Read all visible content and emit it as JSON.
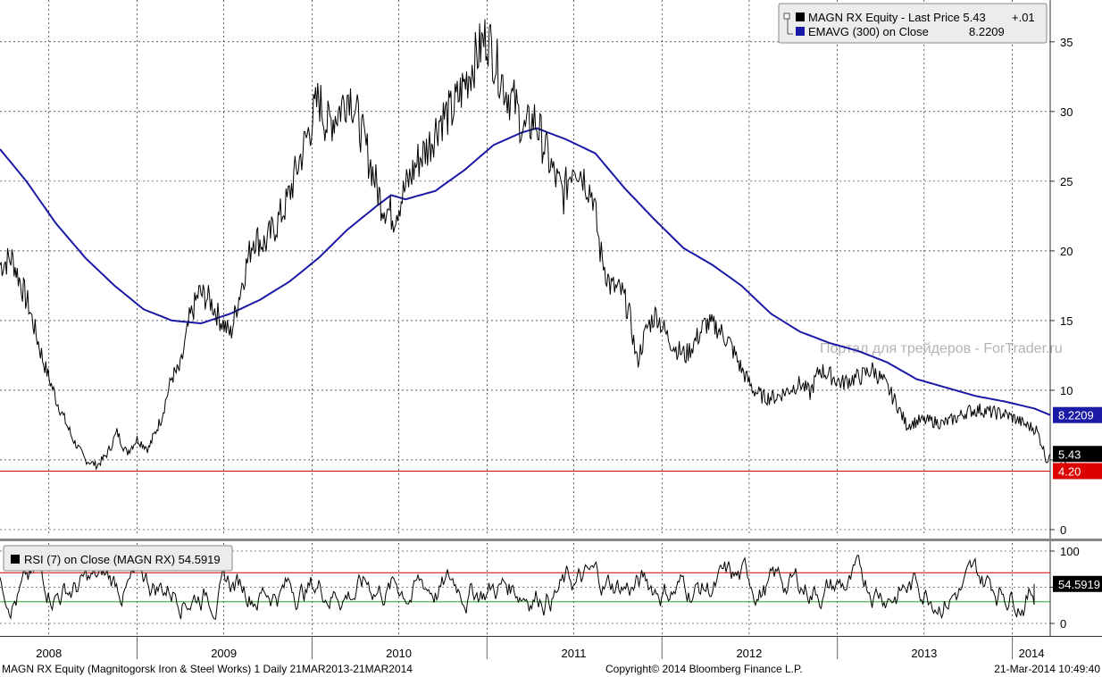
{
  "chart_data": {
    "type": "line",
    "main_panel": {
      "ylim": [
        0,
        38
      ],
      "y_ticks": [
        0,
        5,
        10,
        15,
        20,
        25,
        30,
        35
      ],
      "grid": true,
      "series": [
        {
          "name": "MAGN RX Equity - Last Price",
          "color": "#000000",
          "points": [
            [
              "2008-03-21",
              19.0
            ],
            [
              "2008-04-15",
              19.5
            ],
            [
              "2008-05-20",
              16.0
            ],
            [
              "2008-06-20",
              12.0
            ],
            [
              "2008-07-20",
              9.0
            ],
            [
              "2008-08-20",
              6.5
            ],
            [
              "2008-09-15",
              5.0
            ],
            [
              "2008-10-10",
              4.6
            ],
            [
              "2008-11-01",
              5.5
            ],
            [
              "2008-11-20",
              7.0
            ],
            [
              "2008-12-10",
              5.5
            ],
            [
              "2009-01-01",
              6.5
            ],
            [
              "2009-01-25",
              5.8
            ],
            [
              "2009-02-20",
              8.0
            ],
            [
              "2009-03-15",
              11.0
            ],
            [
              "2009-04-01",
              11.5
            ],
            [
              "2009-04-20",
              15.0
            ],
            [
              "2009-05-10",
              17.0
            ],
            [
              "2009-06-01",
              16.5
            ],
            [
              "2009-06-25",
              15.0
            ],
            [
              "2009-07-15",
              14.0
            ],
            [
              "2009-08-10",
              18.0
            ],
            [
              "2009-09-01",
              21.0
            ],
            [
              "2009-09-25",
              20.5
            ],
            [
              "2009-10-20",
              22.0
            ],
            [
              "2009-11-10",
              23.5
            ],
            [
              "2009-12-01",
              26.0
            ],
            [
              "2009-12-20",
              28.0
            ],
            [
              "2010-01-15",
              31.0
            ],
            [
              "2010-02-01",
              29.0
            ],
            [
              "2010-02-25",
              30.0
            ],
            [
              "2010-03-20",
              31.5
            ],
            [
              "2010-04-10",
              29.0
            ],
            [
              "2010-05-01",
              26.5
            ],
            [
              "2010-05-25",
              23.5
            ],
            [
              "2010-06-20",
              22.5
            ],
            [
              "2010-07-15",
              24.5
            ],
            [
              "2010-08-10",
              26.5
            ],
            [
              "2010-09-01",
              27.5
            ],
            [
              "2010-09-25",
              29.5
            ],
            [
              "2010-10-20",
              30.0
            ],
            [
              "2010-11-15",
              32.0
            ],
            [
              "2010-12-10",
              34.0
            ],
            [
              "2011-01-01",
              35.5
            ],
            [
              "2011-01-20",
              33.5
            ],
            [
              "2011-02-10",
              31.5
            ],
            [
              "2011-03-01",
              30.5
            ],
            [
              "2011-03-20",
              28.5
            ],
            [
              "2011-04-10",
              29.5
            ],
            [
              "2011-05-01",
              27.5
            ],
            [
              "2011-05-20",
              25.5
            ],
            [
              "2011-06-10",
              24.0
            ],
            [
              "2011-07-01",
              26.5
            ],
            [
              "2011-07-20",
              25.5
            ],
            [
              "2011-08-10",
              24.0
            ],
            [
              "2011-08-25",
              20.0
            ],
            [
              "2011-09-15",
              17.5
            ],
            [
              "2011-10-10",
              17.0
            ],
            [
              "2011-10-25",
              15.5
            ],
            [
              "2011-11-10",
              12.0
            ],
            [
              "2011-12-01",
              14.5
            ],
            [
              "2011-12-20",
              15.5
            ],
            [
              "2012-01-10",
              14.0
            ],
            [
              "2012-01-30",
              13.0
            ],
            [
              "2012-02-20",
              12.5
            ],
            [
              "2012-03-10",
              13.5
            ],
            [
              "2012-04-01",
              14.8
            ],
            [
              "2012-04-25",
              14.5
            ],
            [
              "2012-05-20",
              13.5
            ],
            [
              "2012-06-15",
              11.5
            ],
            [
              "2012-07-10",
              10.0
            ],
            [
              "2012-08-01",
              9.5
            ],
            [
              "2012-08-25",
              9.5
            ],
            [
              "2012-09-20",
              10.0
            ],
            [
              "2012-10-15",
              10.5
            ],
            [
              "2012-11-05",
              9.8
            ],
            [
              "2012-11-25",
              11.5
            ],
            [
              "2012-12-20",
              11.0
            ],
            [
              "2013-01-10",
              10.5
            ],
            [
              "2013-01-30",
              10.8
            ],
            [
              "2013-02-20",
              11.0
            ],
            [
              "2013-03-15",
              11.5
            ],
            [
              "2013-04-10",
              10.5
            ],
            [
              "2013-05-05",
              9.0
            ],
            [
              "2013-05-25",
              7.5
            ],
            [
              "2013-06-20",
              7.8
            ],
            [
              "2013-07-15",
              7.8
            ],
            [
              "2013-08-10",
              7.6
            ],
            [
              "2013-09-05",
              8.0
            ],
            [
              "2013-10-01",
              8.5
            ],
            [
              "2013-10-25",
              8.6
            ],
            [
              "2013-11-20",
              8.4
            ],
            [
              "2013-12-15",
              8.3
            ],
            [
              "2014-01-10",
              7.9
            ],
            [
              "2014-01-30",
              7.5
            ],
            [
              "2014-02-20",
              7.2
            ],
            [
              "2014-03-05",
              6.0
            ],
            [
              "2014-03-14",
              4.9
            ],
            [
              "2014-03-21",
              5.43
            ]
          ]
        },
        {
          "name": "EMAVG (300) on Close",
          "color": "#1a1aa6",
          "points": [
            [
              "2008-03-21",
              27.3
            ],
            [
              "2008-05-15",
              25.0
            ],
            [
              "2008-07-15",
              22.0
            ],
            [
              "2008-09-15",
              19.5
            ],
            [
              "2008-11-15",
              17.5
            ],
            [
              "2009-01-15",
              15.8
            ],
            [
              "2009-03-15",
              15.0
            ],
            [
              "2009-05-15",
              14.8
            ],
            [
              "2009-07-15",
              15.5
            ],
            [
              "2009-09-15",
              16.5
            ],
            [
              "2009-11-15",
              17.8
            ],
            [
              "2010-01-15",
              19.5
            ],
            [
              "2010-03-15",
              21.5
            ],
            [
              "2010-05-15",
              23.2
            ],
            [
              "2010-06-15",
              24.0
            ],
            [
              "2010-07-15",
              23.7
            ],
            [
              "2010-09-15",
              24.3
            ],
            [
              "2010-11-15",
              25.8
            ],
            [
              "2011-01-15",
              27.6
            ],
            [
              "2011-03-15",
              28.5
            ],
            [
              "2011-04-15",
              28.8
            ],
            [
              "2011-06-15",
              28.0
            ],
            [
              "2011-08-15",
              27.0
            ],
            [
              "2011-10-15",
              24.5
            ],
            [
              "2011-12-15",
              22.3
            ],
            [
              "2012-02-15",
              20.2
            ],
            [
              "2012-04-15",
              19.0
            ],
            [
              "2012-06-15",
              17.5
            ],
            [
              "2012-08-15",
              15.5
            ],
            [
              "2012-10-15",
              14.2
            ],
            [
              "2012-12-15",
              13.4
            ],
            [
              "2013-02-15",
              12.8
            ],
            [
              "2013-04-15",
              12.0
            ],
            [
              "2013-06-15",
              10.8
            ],
            [
              "2013-08-15",
              10.2
            ],
            [
              "2013-10-15",
              9.6
            ],
            [
              "2013-12-15",
              9.2
            ],
            [
              "2014-02-15",
              8.7
            ],
            [
              "2014-03-21",
              8.2209
            ]
          ]
        }
      ],
      "reference_line": {
        "value": 4.2,
        "color": "#cc0000"
      },
      "price_tags": [
        {
          "label": "8.2209",
          "value": 8.2209,
          "bg": "#1a1aa6",
          "fg": "#ffffff"
        },
        {
          "label": "5.43",
          "value": 5.43,
          "bg": "#000000",
          "fg": "#ffffff"
        },
        {
          "label": "4.20",
          "value": 4.2,
          "bg": "#dd0000",
          "fg": "#ffffff"
        }
      ],
      "legend": {
        "placement": "top-right",
        "entries": [
          {
            "marker_color": "#000000",
            "text": "MAGN RX Equity - Last Price 5.43",
            "change": "+.01"
          },
          {
            "marker_color": "#1a1aa6",
            "text": "EMAVG (300) on Close",
            "change": "8.2209"
          }
        ]
      },
      "watermark": "Портал для трейдеров - ForTrader.ru"
    },
    "rsi_panel": {
      "title": "RSI (7) on Close (MAGN RX) 54.5919",
      "ylim": [
        0,
        100
      ],
      "y_ticks": [
        0,
        50,
        100
      ],
      "overbought": 70,
      "oversold": 30,
      "overbought_color": "#cc0000",
      "oversold_color": "#22aa22",
      "last_label": "54.5919",
      "last_value": 54.5919
    },
    "x_axis": {
      "start": "2008-03-21",
      "end": "2014-03-21",
      "labels": [
        {
          "text": "2008",
          "date": "2008-07-01"
        },
        {
          "text": "2009",
          "date": "2009-07-01"
        },
        {
          "text": "2010",
          "date": "2010-07-01"
        },
        {
          "text": "2011",
          "date": "2011-07-01"
        },
        {
          "text": "2012",
          "date": "2012-07-01"
        },
        {
          "text": "2013",
          "date": "2013-07-01"
        },
        {
          "text": "2014",
          "date": "2014-02-10"
        }
      ]
    }
  },
  "footer": {
    "left": "MAGN RX Equity (Magnitogorsk Iron & Steel Works) 1  Daily 21MAR2013-21MAR2014",
    "center": "Copyright© 2014 Bloomberg Finance L.P.",
    "right": "21-Mar-2014 10:49:40"
  }
}
